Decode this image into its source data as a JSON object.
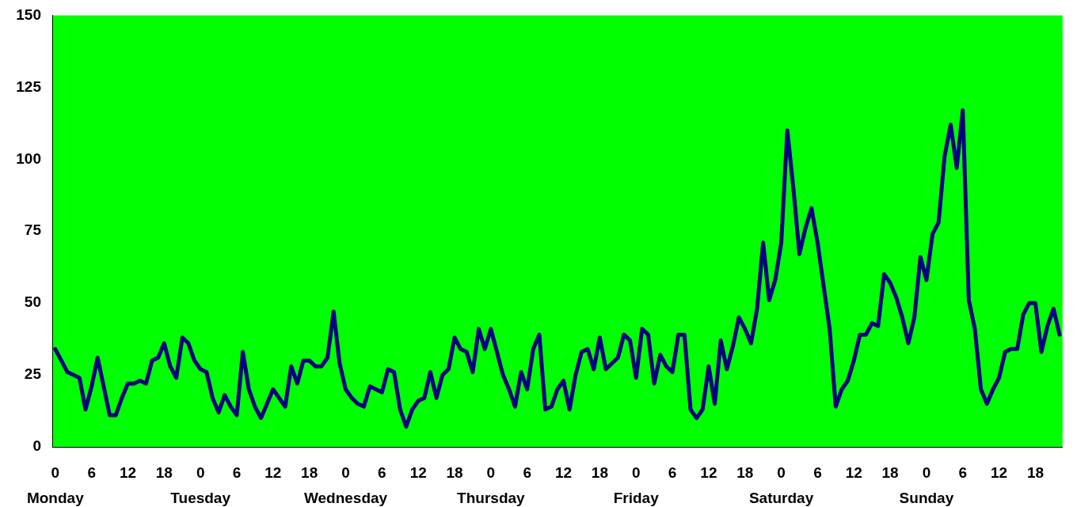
{
  "chart_data": {
    "type": "line",
    "categories": [
      "0",
      null,
      null,
      null,
      null,
      null,
      "6",
      null,
      null,
      null,
      null,
      null,
      "12",
      null,
      null,
      null,
      null,
      null,
      "18",
      null,
      null,
      null,
      null,
      null,
      "0",
      null,
      null,
      null,
      null,
      null,
      "6",
      null,
      null,
      null,
      null,
      null,
      "12",
      null,
      null,
      null,
      null,
      null,
      "18",
      null,
      null,
      null,
      null,
      null,
      "0",
      null,
      null,
      null,
      null,
      null,
      "6",
      null,
      null,
      null,
      null,
      null,
      "12",
      null,
      null,
      null,
      null,
      null,
      "18",
      null,
      null,
      null,
      null,
      null,
      "0",
      null,
      null,
      null,
      null,
      null,
      "6",
      null,
      null,
      null,
      null,
      null,
      "12",
      null,
      null,
      null,
      null,
      null,
      "18",
      null,
      null,
      null,
      null,
      null,
      "0",
      null,
      null,
      null,
      null,
      null,
      "6",
      null,
      null,
      null,
      null,
      null,
      "12",
      null,
      null,
      null,
      null,
      null,
      "18",
      null,
      null,
      null,
      null,
      null,
      "0",
      null,
      null,
      null,
      null,
      null,
      "6",
      null,
      null,
      null,
      null,
      null,
      "12",
      null,
      null,
      null,
      null,
      null,
      "18",
      null,
      null,
      null,
      null,
      null,
      "0",
      null,
      null,
      null,
      null,
      null,
      "6",
      null,
      null,
      null,
      null,
      null,
      "12",
      null,
      null,
      null,
      null,
      null,
      "18",
      null,
      null,
      null,
      null
    ],
    "series": [
      {
        "color": "#000080",
        "values": [
          34,
          30,
          26,
          25,
          24,
          13,
          21,
          31,
          21,
          11,
          11,
          17,
          22,
          22,
          23,
          22,
          30,
          31,
          36,
          28,
          24,
          38,
          36,
          30,
          27,
          26,
          17,
          12,
          18,
          14,
          11,
          33,
          20,
          14,
          10,
          15,
          20,
          17,
          14,
          28,
          22,
          30,
          30,
          28,
          28,
          31,
          47,
          29,
          20,
          17,
          15,
          14,
          21,
          20,
          19,
          27,
          26,
          13,
          7,
          13,
          16,
          17,
          26,
          17,
          25,
          27,
          38,
          34,
          33,
          26,
          41,
          34,
          41,
          33,
          25,
          20,
          14,
          26,
          20,
          34,
          39,
          13,
          14,
          20,
          23,
          13,
          25,
          33,
          34,
          27,
          38,
          27,
          29,
          31,
          39,
          37,
          24,
          41,
          39,
          22,
          32,
          28,
          26,
          39,
          39,
          13,
          10,
          13,
          28,
          15,
          37,
          27,
          35,
          45,
          41,
          36,
          48,
          71,
          51,
          58,
          71,
          110,
          90,
          67,
          76,
          83,
          71,
          56,
          41,
          14,
          20,
          23,
          30,
          39,
          39,
          43,
          42,
          60,
          57,
          52,
          45,
          36,
          45,
          66,
          58,
          74,
          78,
          101,
          112,
          97,
          117,
          51,
          41,
          20,
          15,
          20,
          24,
          33,
          34,
          34,
          46,
          50,
          50,
          33,
          42,
          48,
          39
        ]
      }
    ],
    "ylim": [
      0,
      150
    ],
    "yticks": [
      0,
      25,
      50,
      75,
      100,
      125,
      150
    ],
    "grid": false,
    "legend": false,
    "marker": "none",
    "line_style": "solid",
    "annotations": [
      "Monday",
      "Tuesday",
      "Wednesday",
      "Thursday",
      "Friday",
      "Saturday",
      "Sunday"
    ]
  }
}
